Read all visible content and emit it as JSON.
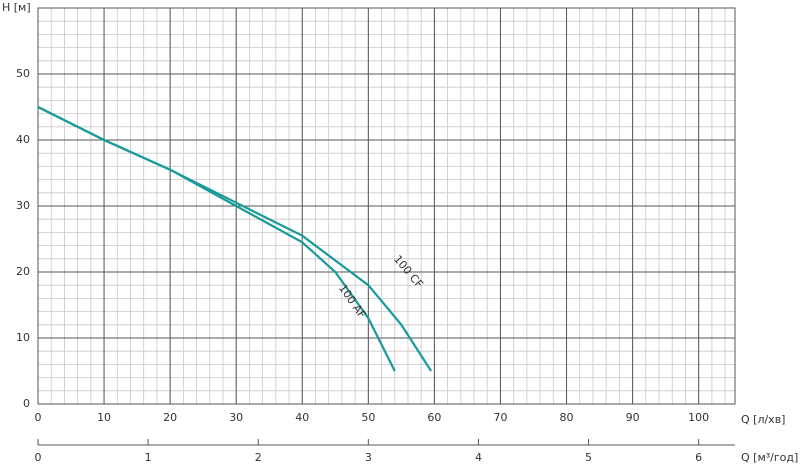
{
  "chart_data": {
    "type": "line",
    "y_label": "H [м]",
    "x_label": "Q [л/хв]",
    "x2_label": "Q [м³/год]",
    "xlim": [
      0,
      105.5
    ],
    "xticks": [
      0,
      10,
      20,
      30,
      40,
      50,
      60,
      70,
      80,
      90,
      100
    ],
    "ylim": [
      0,
      60
    ],
    "yticks": [
      0,
      10,
      20,
      30,
      40,
      50
    ],
    "x2lim": [
      0,
      6.33
    ],
    "x2ticks": [
      0,
      1,
      2,
      3,
      4,
      5,
      6
    ],
    "grid": true,
    "minor_grid_divisions": 5,
    "series": [
      {
        "name": "100 AF",
        "color": "#1a9a9a",
        "x": [
          0,
          10,
          20,
          30,
          40,
          45,
          50,
          54
        ],
        "values": [
          45,
          40,
          35.5,
          30,
          24.5,
          20,
          13,
          5
        ]
      },
      {
        "name": "100 CF",
        "color": "#1a9a9a",
        "x": [
          0,
          10,
          20,
          30,
          40,
          50,
          55,
          59.5
        ],
        "values": [
          45,
          40,
          35.5,
          30.5,
          25.5,
          18,
          12,
          5
        ]
      }
    ]
  }
}
